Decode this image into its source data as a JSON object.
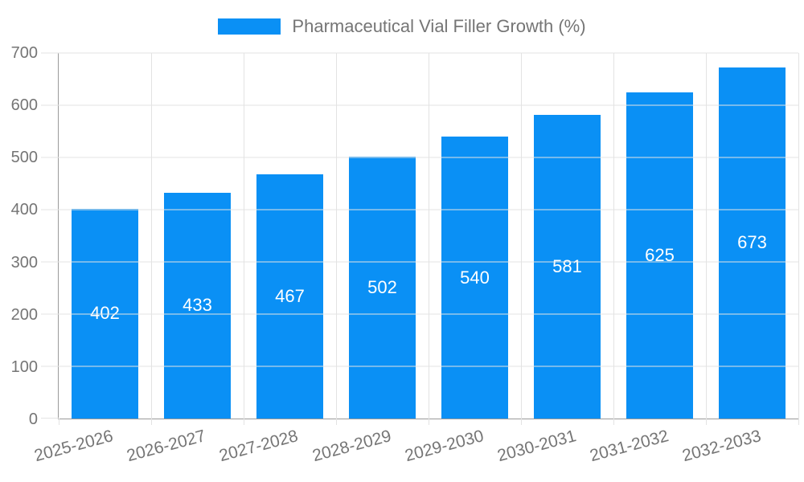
{
  "chart_data": {
    "type": "bar",
    "title": "Pharmaceutical Vial Filler Growth (%)",
    "categories": [
      "2025-2026",
      "2026-2027",
      "2027-2028",
      "2028-2029",
      "2029-2030",
      "2030-2031",
      "2031-2032",
      "2032-2033"
    ],
    "values": [
      402,
      433,
      467,
      502,
      540,
      581,
      625,
      673
    ],
    "xlabel": "",
    "ylabel": "",
    "ylim": [
      0,
      700
    ],
    "yticks": [
      0,
      100,
      200,
      300,
      400,
      500,
      600,
      700
    ],
    "grid": true,
    "legend_position": "top-center",
    "legend_entries": [
      "Pharmaceutical Vial Filler Growth (%)"
    ],
    "value_labels_shown": true,
    "x_label_rotation_deg": -15,
    "colors": {
      "bar": "#0a90f5",
      "value_label": "#ffffff",
      "axis_text": "#757575",
      "grid_line": "#e3e3e3",
      "axis_line": "#9a9a9a",
      "background": "#ffffff"
    }
  }
}
